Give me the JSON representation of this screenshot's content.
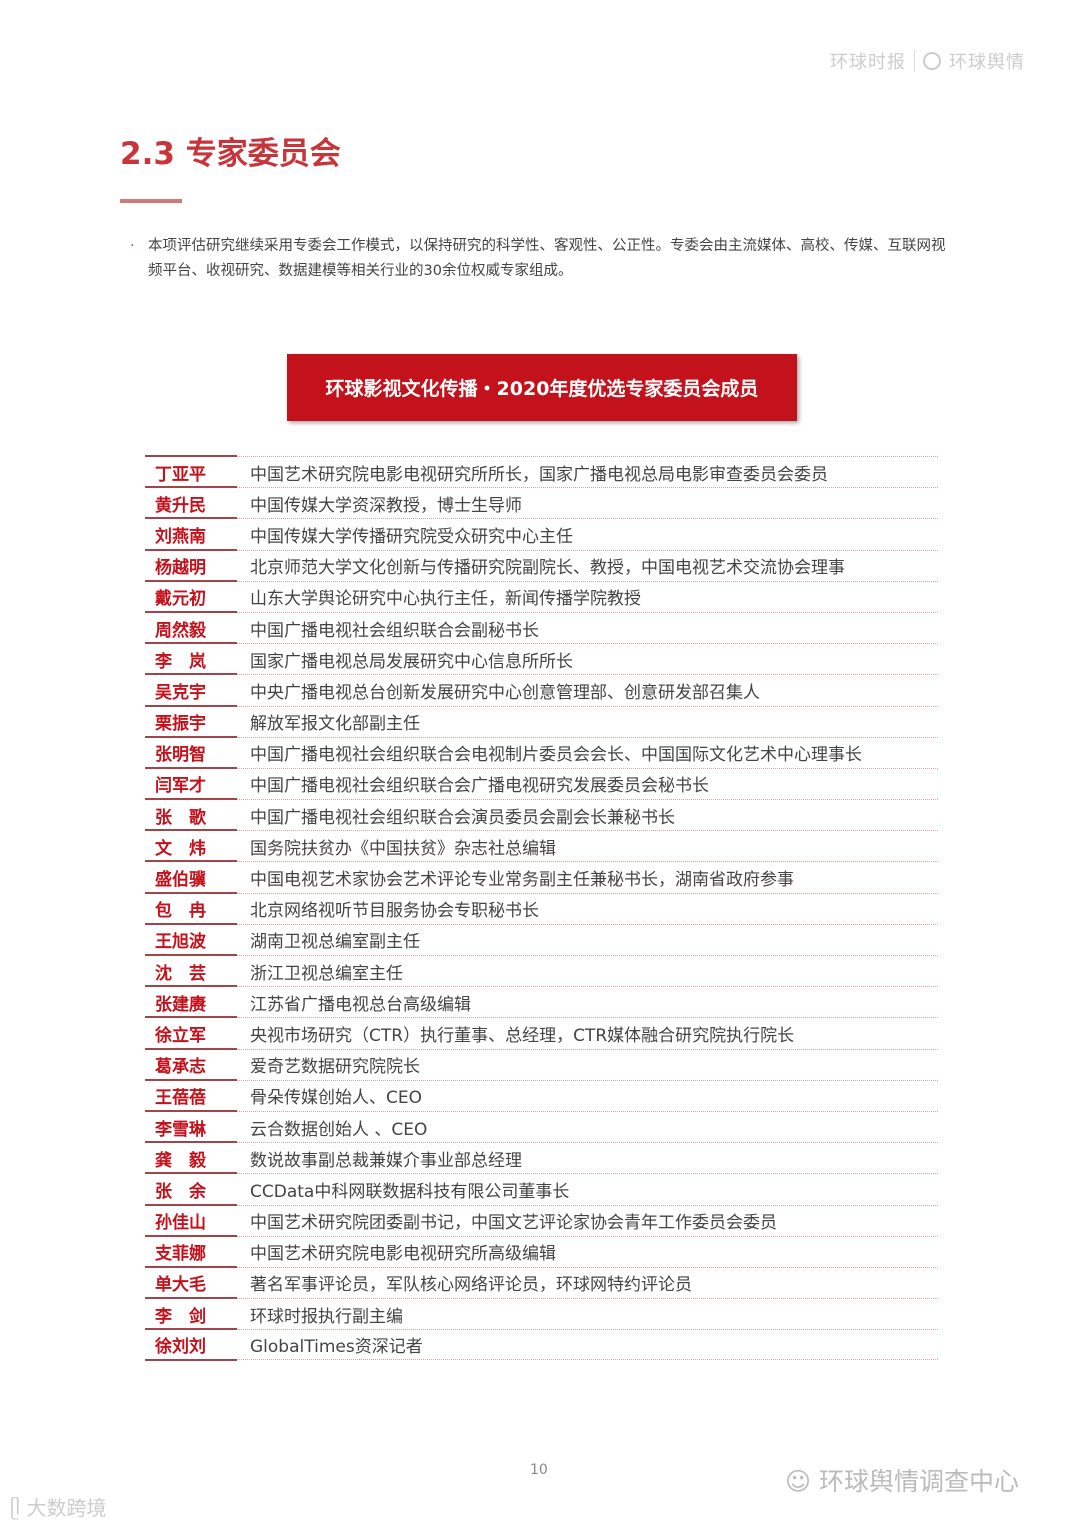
{
  "header": {
    "logo_left": "环球时报",
    "logo_right": "环球舆情"
  },
  "section": {
    "title": "2.3 专家委员会"
  },
  "intro": {
    "bullet": "·",
    "text": "本项评估研究继续采用专委会工作模式，以保持研究的科学性、客观性、公正性。专委会由主流媒体、高校、传媒、互联网视频平台、收视研究、数据建模等相关行业的30余位权威专家组成。"
  },
  "table_title": "环球影视文化传播・2020年度优选专家委员会成员",
  "members": [
    {
      "name": "丁亚平",
      "title": "中国艺术研究院电影电视研究所所长，国家广播电视总局电影审查委员会委员"
    },
    {
      "name": "黄升民",
      "title": "中国传媒大学资深教授，博士生导师"
    },
    {
      "name": "刘燕南",
      "title": "中国传媒大学传播研究院受众研究中心主任"
    },
    {
      "name": "杨越明",
      "title": "北京师范大学文化创新与传播研究院副院长、教授，中国电视艺术交流协会理事"
    },
    {
      "name": "戴元初",
      "title": "山东大学舆论研究中心执行主任，新闻传播学院教授"
    },
    {
      "name": "周然毅",
      "title": "中国广播电视社会组织联合会副秘书长"
    },
    {
      "name": "李　岚",
      "title": "国家广播电视总局发展研究中心信息所所长"
    },
    {
      "name": "吴克宇",
      "title": "中央广播电视总台创新发展研究中心创意管理部、创意研发部召集人"
    },
    {
      "name": "栗振宇",
      "title": "解放军报文化部副主任"
    },
    {
      "name": "张明智",
      "title": "中国广播电视社会组织联合会电视制片委员会会长、中国国际文化艺术中心理事长"
    },
    {
      "name": "闫军才",
      "title": "中国广播电视社会组织联合会广播电视研究发展委员会秘书长"
    },
    {
      "name": "张　歌",
      "title": "中国广播电视社会组织联合会演员委员会副会长兼秘书长"
    },
    {
      "name": "文　炜",
      "title": "国务院扶贫办《中国扶贫》杂志社总编辑"
    },
    {
      "name": "盛伯骥",
      "title": "中国电视艺术家协会艺术评论专业常务副主任兼秘书长，湖南省政府参事"
    },
    {
      "name": "包　冉",
      "title": "北京网络视听节目服务协会专职秘书长"
    },
    {
      "name": "王旭波",
      "title": "湖南卫视总编室副主任"
    },
    {
      "name": "沈　芸",
      "title": "浙江卫视总编室主任"
    },
    {
      "name": "张建赓",
      "title": "江苏省广播电视总台高级编辑"
    },
    {
      "name": "徐立军",
      "title": "央视市场研究（CTR）执行董事、总经理，CTR媒体融合研究院执行院长"
    },
    {
      "name": "葛承志",
      "title": "爱奇艺数据研究院院长"
    },
    {
      "name": "王蓓蓓",
      "title": "骨朵传媒创始人、CEO"
    },
    {
      "name": "李雪琳",
      "title": "云合数据创始人 、CEO"
    },
    {
      "name": "龚　毅",
      "title": "数说故事副总裁兼媒介事业部总经理"
    },
    {
      "name": "张　余",
      "title": "CCData中科网联数据科技有限公司董事长"
    },
    {
      "name": "孙佳山",
      "title": "中国艺术研究院团委副书记，中国文艺评论家协会青年工作委员会委员"
    },
    {
      "name": "支菲娜",
      "title": "中国艺术研究院电影电视研究所高级编辑"
    },
    {
      "name": "单大毛",
      "title": "著名军事评论员，军队核心网络评论员，环球网特约评论员"
    },
    {
      "name": "李　剑",
      "title": "环球时报执行副主编"
    },
    {
      "name": "徐刘刘",
      "title": "GlobalTimes资深记者"
    }
  ],
  "footer": {
    "page_number": "10",
    "watermark_right": "环球舆情调查中心",
    "watermark_left": "大数跨境"
  },
  "colors": {
    "accent": "#c4121c",
    "heading": "#c8343a"
  }
}
